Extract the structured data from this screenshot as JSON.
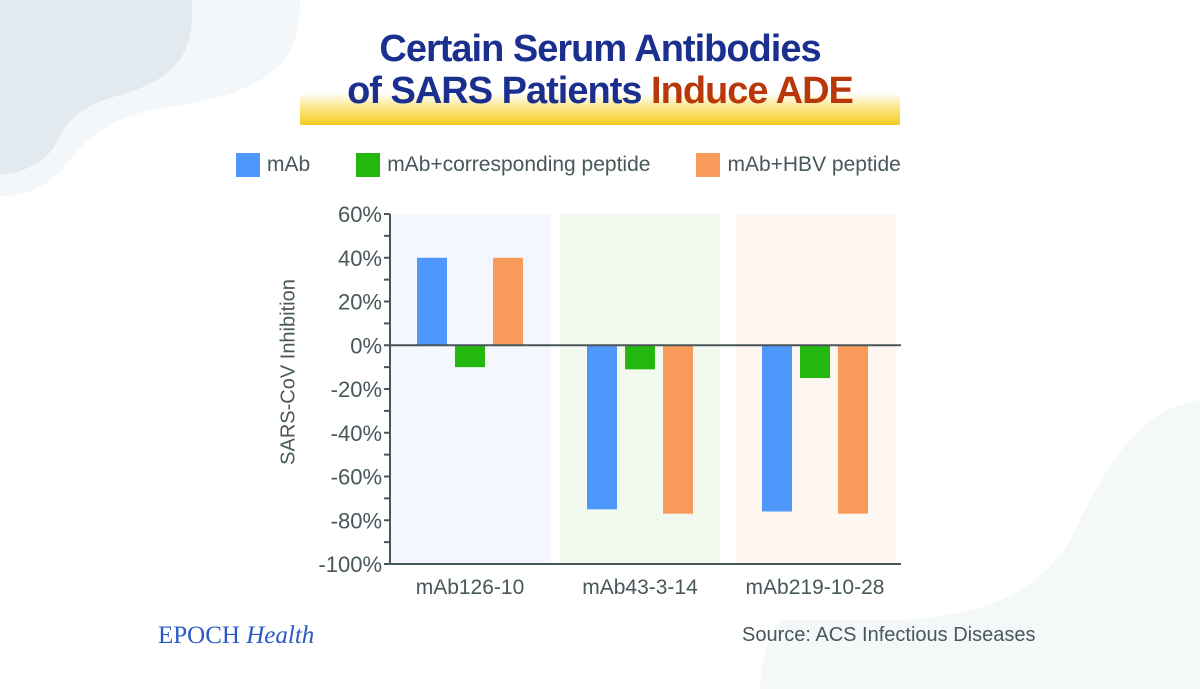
{
  "header": {
    "title_line1": "Certain Serum Antibodies",
    "title_line2_main": "of SARS Patients",
    "title_line2_accent": "Induce ADE"
  },
  "colors": {
    "title": "#1b2f8f",
    "accent": "#b8380a",
    "series": [
      "#4f97fa",
      "#22b80e",
      "#f89b5a"
    ],
    "panels": [
      "#f4f7fd",
      "#f2f9ef",
      "#fef6f0"
    ],
    "axis": "#4a5759"
  },
  "footer": {
    "logo_main": "EPOCH",
    "logo_sub": "Health",
    "source": "Source: ACS Infectious Diseases"
  },
  "chart_data": {
    "type": "bar",
    "title": "Certain Serum Antibodies of SARS Patients Induce ADE",
    "xlabel": "",
    "ylabel": "SARS-CoV Inhibition",
    "categories": [
      "mAb126-10",
      "mAb43-3-14",
      "mAb219-10-28"
    ],
    "series": [
      {
        "name": "mAb",
        "values": [
          40,
          -75,
          -76
        ]
      },
      {
        "name": "mAb+corresponding peptide",
        "values": [
          -10,
          -11,
          -15
        ]
      },
      {
        "name": "mAb+HBV peptide",
        "values": [
          40,
          -77,
          -77
        ]
      }
    ],
    "ylim": [
      -100,
      60
    ],
    "yticks": [
      60,
      40,
      20,
      0,
      -20,
      -40,
      -60,
      -80,
      -100
    ],
    "ytick_labels": [
      "60%",
      "40%",
      "20%",
      "0%",
      "-20%",
      "-40%",
      "-60%",
      "-80%",
      "-100%"
    ],
    "grid": false,
    "legend_position": "top"
  }
}
